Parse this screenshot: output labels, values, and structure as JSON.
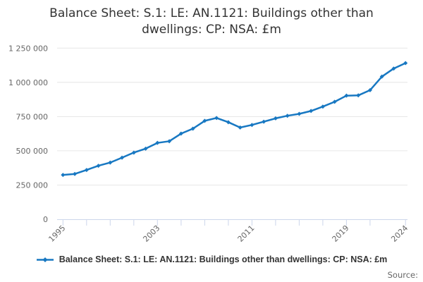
{
  "title": "Balance Sheet: S.1: LE: AN.1121: Buildings other than dwellings: CP: NSA: £m",
  "legend": {
    "label": "Balance Sheet: S.1: LE: AN.1121: Buildings other than dwellings: CP: NSA: £m"
  },
  "source_label": "Source:",
  "colors": {
    "line": "#1878c2",
    "grid": "#e6e6e6",
    "axis": "#ccd6eb",
    "tick_label": "#666666",
    "title": "#333333",
    "legend_text": "#333333",
    "source": "#666666"
  },
  "chart_data": {
    "type": "line",
    "title": "Balance Sheet: S.1: LE: AN.1121: Buildings other than dwellings: CP: NSA: £m",
    "xlabel": "",
    "ylabel": "",
    "x": [
      1995,
      1996,
      1997,
      1998,
      1999,
      2000,
      2001,
      2002,
      2003,
      2004,
      2005,
      2006,
      2007,
      2008,
      2009,
      2010,
      2011,
      2012,
      2013,
      2014,
      2015,
      2016,
      2017,
      2018,
      2019,
      2020,
      2021,
      2022,
      2023,
      2024
    ],
    "series": [
      {
        "name": "Balance Sheet: S.1: LE: AN.1121: Buildings other than dwellings: CP: NSA: £m",
        "values": [
          324000,
          331000,
          360000,
          391000,
          414000,
          450000,
          487000,
          516000,
          558000,
          570000,
          626000,
          662000,
          719000,
          740000,
          709000,
          670000,
          689000,
          713000,
          737000,
          756000,
          770000,
          791000,
          823000,
          858000,
          903000,
          905000,
          943000,
          1042000,
          1101000,
          1141000
        ]
      }
    ],
    "ylim": [
      0,
      1250000
    ],
    "yticks": [
      0,
      250000,
      500000,
      750000,
      1000000,
      1250000
    ],
    "ytick_labels": [
      "0",
      "250 000",
      "500 000",
      "750 000",
      "1 000 000",
      "1 250 000"
    ],
    "xticks": [
      1995,
      1997,
      1999,
      2001,
      2003,
      2005,
      2007,
      2009,
      2011,
      2013,
      2015,
      2017,
      2019,
      2021,
      2024
    ],
    "xtick_labeled": [
      1995,
      2003,
      2011,
      2019,
      2024
    ],
    "grid": "horizontal",
    "legend_position": "bottom",
    "marker": "diamond"
  }
}
